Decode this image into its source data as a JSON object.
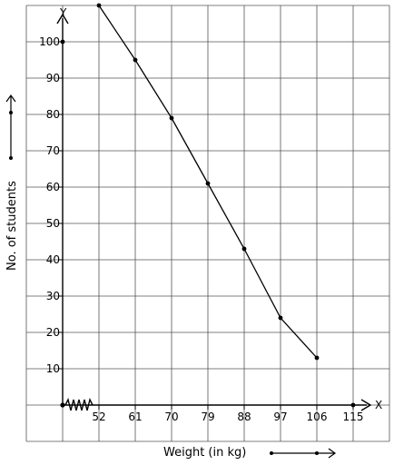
{
  "chart_data": {
    "type": "line",
    "title": "",
    "xlabel": "Weight (in kg)",
    "ylabel": "No. of students",
    "x_axis_name": "X",
    "y_axis_name": "Y",
    "x": [
      52,
      61,
      70,
      79,
      88,
      97,
      106
    ],
    "y": [
      110,
      95,
      79,
      61,
      43,
      24,
      13
    ],
    "x_ticks": [
      "52",
      "61",
      "70",
      "79",
      "88",
      "97",
      "106",
      "115"
    ],
    "y_ticks": [
      "10",
      "20",
      "30",
      "40",
      "50",
      "60",
      "70",
      "80",
      "90",
      "100"
    ],
    "ylim": [
      0,
      110
    ],
    "grid": true,
    "x_axis_break": true
  }
}
